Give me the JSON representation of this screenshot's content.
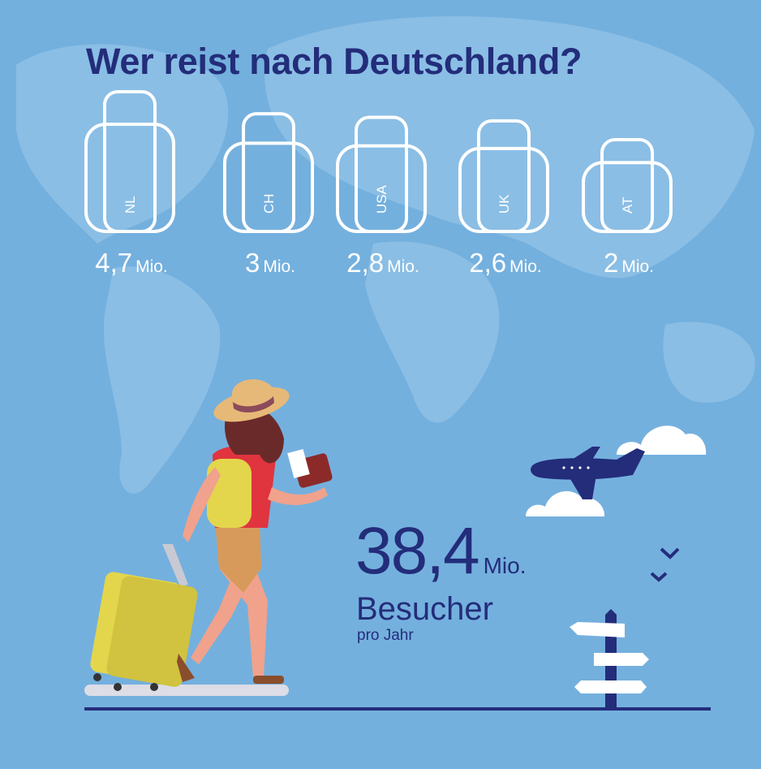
{
  "title": "Wer reist nach Deutschland?",
  "chart_data": {
    "type": "pictorial-bar",
    "title": "Wer reist nach Deutschland?",
    "unit": "Mio.",
    "categories": [
      "NL",
      "CH",
      "USA",
      "UK",
      "AT"
    ],
    "values": [
      4.7,
      3,
      2.8,
      2.6,
      2
    ],
    "value_labels": [
      "4,7",
      "3",
      "2,8",
      "2,6",
      "2"
    ]
  },
  "total": {
    "value": "38,4",
    "unit": "Mio.",
    "label": "Besucher",
    "sublabel": "pro Jahr"
  },
  "colors": {
    "background": "#74b0de",
    "map": "#8ec1e6",
    "accent": "#232d7a",
    "bag_outline": "#ffffff",
    "suitcase": "#e3d64c"
  },
  "icons": [
    "suitcase-icon",
    "traveler-illustration",
    "airplane-icon",
    "cloud-icon",
    "signpost-icon",
    "bird-icon"
  ]
}
